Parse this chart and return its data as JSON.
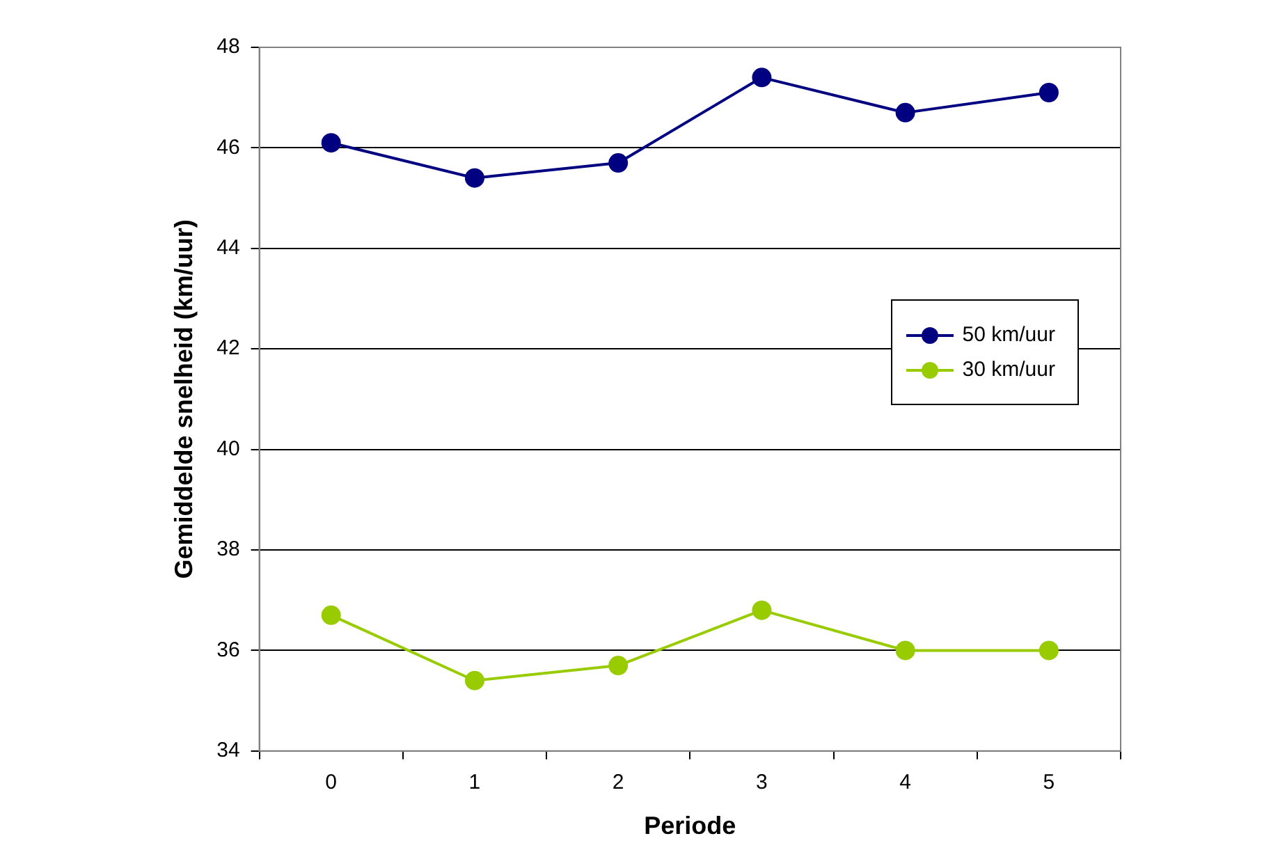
{
  "chart_data": {
    "type": "line",
    "xlabel": "Periode",
    "ylabel": "Gemiddelde snelheid (km/uur)",
    "categories": [
      "0",
      "1",
      "2",
      "3",
      "4",
      "5"
    ],
    "series": [
      {
        "name": "50 km/uur",
        "color": "#000080",
        "values": [
          46.1,
          45.4,
          45.7,
          47.4,
          46.7,
          47.1
        ]
      },
      {
        "name": "30 km/uur",
        "color": "#99cc00",
        "values": [
          36.7,
          35.4,
          35.7,
          36.8,
          36.0,
          36.0
        ]
      }
    ],
    "ylim": [
      34,
      48
    ],
    "yticks": [
      34,
      36,
      38,
      40,
      42,
      44,
      46,
      48
    ],
    "grid": "y",
    "legend": "right",
    "marker": "circle",
    "line_style": "solid"
  }
}
